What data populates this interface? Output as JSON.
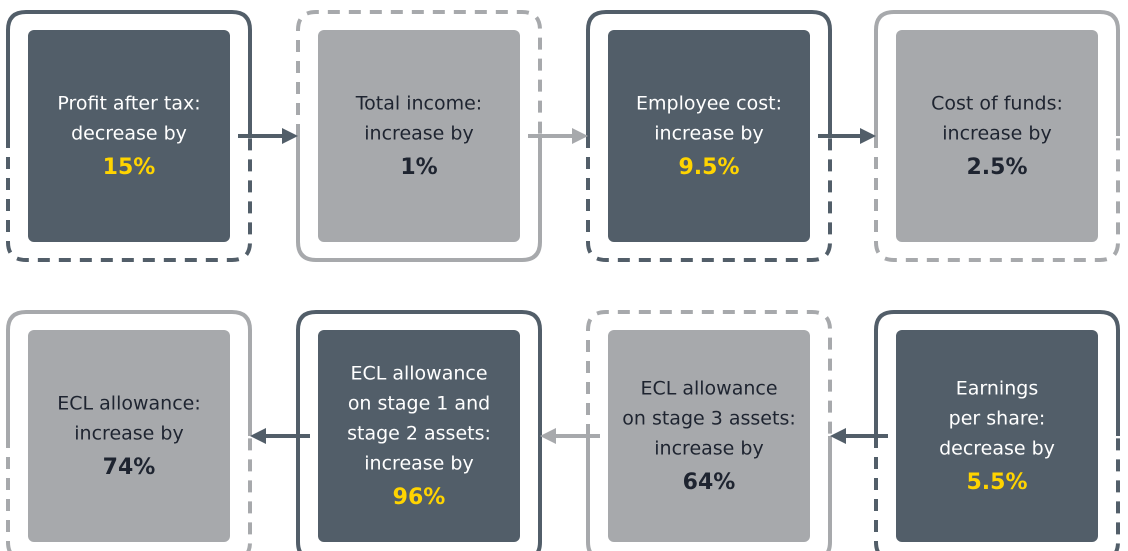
{
  "cards": [
    {
      "label": [
        "Profit after tax:",
        "decrease by"
      ],
      "value": "15%"
    },
    {
      "label": [
        "Total income:",
        "increase by"
      ],
      "value": "1%"
    },
    {
      "label": [
        "Employee cost:",
        "increase by"
      ],
      "value": "9.5%"
    },
    {
      "label": [
        "Cost of funds:",
        "increase by"
      ],
      "value": "2.5%"
    },
    {
      "label": [
        "ECL allowance:",
        "increase by"
      ],
      "value": "74%"
    },
    {
      "label": [
        "ECL allowance",
        "on stage 1 and",
        "stage 2 assets:",
        "increase by"
      ],
      "value": "96%"
    },
    {
      "label": [
        "ECL allowance",
        "on stage 3 assets:",
        "increase by"
      ],
      "value": "64%"
    },
    {
      "label": [
        "Earnings",
        "per share:",
        "decrease by"
      ],
      "value": "5.5%"
    }
  ]
}
